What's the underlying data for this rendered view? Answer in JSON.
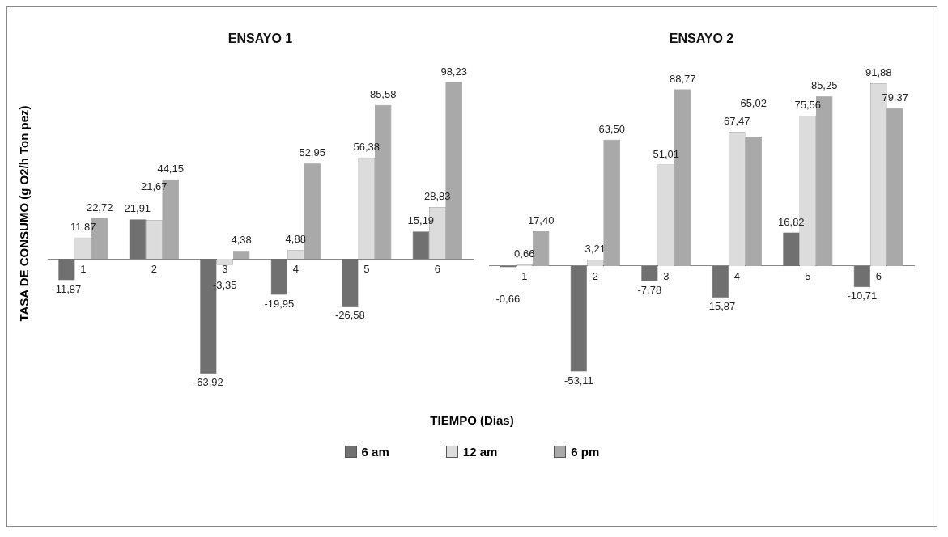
{
  "chart_data": [
    {
      "type": "bar",
      "title": "ENSAYO 1",
      "ylabel": "TASA DE CONSUMO (g O2/h Ton pez)",
      "xlabel": "TIEMPO (Días)",
      "legend": "bottom",
      "categories": [
        "1",
        "2",
        "3",
        "4",
        "5",
        "6"
      ],
      "series": [
        {
          "name": "6 am",
          "color": "#707070",
          "values": [
            -11.87,
            21.91,
            -63.92,
            -19.95,
            -26.58,
            15.19
          ],
          "value_labels": [
            "-11,87",
            "21,91",
            "-63,92",
            "-19,95",
            "-26,58",
            "15,19"
          ]
        },
        {
          "name": "12 am",
          "color": "#dcdcdc",
          "values": [
            11.87,
            21.67,
            -3.35,
            4.88,
            56.38,
            28.83
          ],
          "value_labels": [
            "11,87",
            "21,67",
            "-3,35",
            "4,88",
            "56,38",
            "28,83"
          ]
        },
        {
          "name": "6 pm",
          "color": "#a9a9a9",
          "values": [
            22.72,
            44.15,
            4.38,
            52.95,
            85.58,
            98.23
          ],
          "value_labels": [
            "22,72",
            "44,15",
            "4,38",
            "52,95",
            "85,58",
            "98,23"
          ]
        }
      ]
    },
    {
      "type": "bar",
      "title": "ENSAYO 2",
      "categories": [
        "1",
        "2",
        "3",
        "4",
        "5",
        "6"
      ],
      "series": [
        {
          "color": "#707070",
          "values": [
            -0.66,
            -53.11,
            -7.78,
            -15.87,
            16.82,
            -10.71
          ],
          "value_labels": [
            "-0,66",
            "-53,11",
            "-7,78",
            "-15,87",
            "16,82",
            "-10,71"
          ]
        },
        {
          "color": "#dcdcdc",
          "values": [
            0.66,
            3.21,
            51.01,
            67.47,
            75.56,
            91.88
          ],
          "value_labels": [
            "0,66",
            "3,21",
            "51,01",
            "67,47",
            "75,56",
            "91,88"
          ]
        },
        {
          "color": "#a9a9a9",
          "values": [
            17.4,
            63.5,
            88.77,
            65.02,
            85.25,
            79.37
          ],
          "value_labels": [
            "17,40",
            "63,50",
            "88,77",
            "65,02",
            "85,25",
            "79,37"
          ]
        }
      ]
    }
  ]
}
